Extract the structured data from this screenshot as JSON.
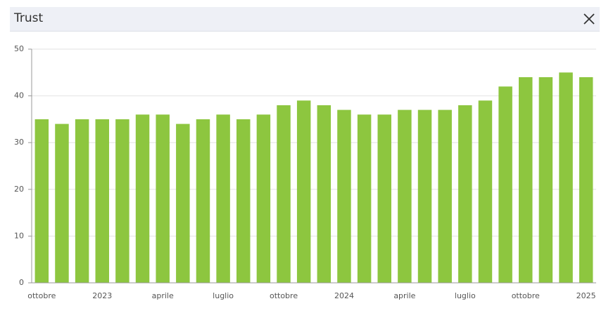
{
  "header": {
    "title": "Trust"
  },
  "chart_data": {
    "type": "bar",
    "categories": [
      "ottobre",
      null,
      null,
      "2023",
      null,
      null,
      "aprile",
      null,
      null,
      "luglio",
      null,
      null,
      "ottobre",
      null,
      null,
      "2024",
      null,
      null,
      "aprile",
      null,
      null,
      "luglio",
      null,
      null,
      "ottobre",
      null,
      null,
      "2025"
    ],
    "values": [
      35,
      34,
      35,
      35,
      35,
      36,
      36,
      34,
      35,
      36,
      35,
      36,
      38,
      39,
      38,
      37,
      36,
      36,
      37,
      37,
      37,
      38,
      39,
      42,
      44,
      44,
      45,
      44
    ],
    "color": "#8dc63f",
    "ylim": [
      0,
      50
    ],
    "yticks": [
      0,
      10,
      20,
      30,
      40,
      50
    ],
    "grid": true
  }
}
